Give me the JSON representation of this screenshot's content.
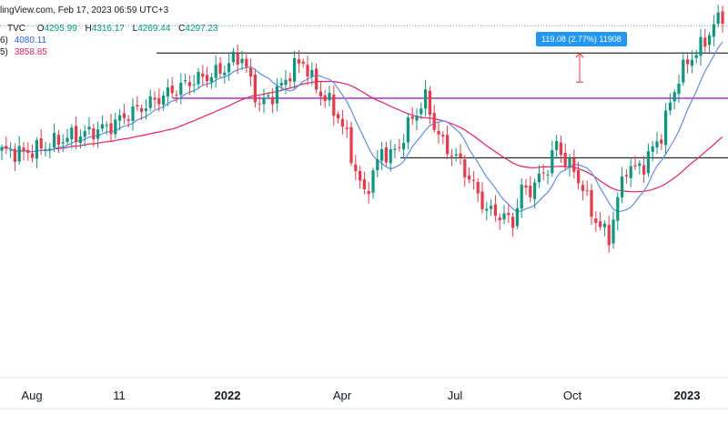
{
  "header": {
    "source": "lingView.com, Feb 17, 2023 06:59 UTC+3",
    "tvc": "TVC",
    "open_label": "O",
    "open": "4295.99",
    "high_label": "H",
    "high": "4316.17",
    "low_label": "L",
    "low": "4269.44",
    "close_label": "C",
    "close": "4297.23"
  },
  "legend": {
    "ma50_prefix": "6)",
    "ma50_value": "4080.11",
    "ma200_prefix": "5)",
    "ma200_value": "3858.85"
  },
  "measure_tag": "119.08 (2.77%) 11908",
  "colors": {
    "up": "#089981",
    "down": "#f23645",
    "ma50": "#5b8def",
    "ma200": "#e91e63",
    "resistance_purple": "#9c27b0",
    "tag": "#2196f3",
    "level_black": "#000000"
  },
  "chart_data": {
    "type": "candlestick",
    "x_tick_labels": [
      "Aug",
      "11",
      "2022",
      "Apr",
      "Jul",
      "Oct",
      "2023"
    ],
    "bold_tick_labels": [
      "2022",
      "2023"
    ],
    "ohlc_last": {
      "open": 4295.99,
      "high": 4316.17,
      "low": 4269.44,
      "close": 4297.23
    },
    "moving_averages": [
      {
        "value": 4080.11
      },
      {
        "value": 3858.85
      }
    ],
    "approx_close_path": [
      [
        0,
        4390
      ],
      [
        5,
        4380
      ],
      [
        10,
        4410
      ],
      [
        15,
        4450
      ],
      [
        20,
        4470
      ],
      [
        25,
        4500
      ],
      [
        28,
        4540
      ],
      [
        32,
        4580
      ],
      [
        36,
        4620
      ],
      [
        40,
        4660
      ],
      [
        44,
        4700
      ],
      [
        48,
        4720
      ],
      [
        51,
        4750
      ],
      [
        53,
        4790
      ],
      [
        55,
        4800
      ],
      [
        57,
        4690
      ],
      [
        59,
        4590
      ],
      [
        61,
        4620
      ],
      [
        63,
        4650
      ],
      [
        65,
        4700
      ],
      [
        67,
        4760
      ],
      [
        69,
        4780
      ],
      [
        71,
        4700
      ],
      [
        73,
        4640
      ],
      [
        75,
        4600
      ],
      [
        77,
        4540
      ],
      [
        79,
        4450
      ],
      [
        81,
        4300
      ],
      [
        83,
        4200
      ],
      [
        85,
        4290
      ],
      [
        87,
        4390
      ],
      [
        89,
        4370
      ],
      [
        91,
        4410
      ],
      [
        93,
        4500
      ],
      [
        95,
        4560
      ],
      [
        97,
        4620
      ],
      [
        99,
        4500
      ],
      [
        101,
        4420
      ],
      [
        103,
        4380
      ],
      [
        105,
        4340
      ],
      [
        107,
        4270
      ],
      [
        109,
        4200
      ],
      [
        111,
        4130
      ],
      [
        113,
        4120
      ],
      [
        115,
        4100
      ],
      [
        117,
        4080
      ],
      [
        119,
        4220
      ],
      [
        121,
        4220
      ],
      [
        123,
        4270
      ],
      [
        125,
        4320
      ],
      [
        127,
        4420
      ],
      [
        129,
        4350
      ],
      [
        131,
        4300
      ],
      [
        133,
        4230
      ],
      [
        135,
        4120
      ],
      [
        137,
        4060
      ],
      [
        139,
        4010
      ],
      [
        141,
        4180
      ],
      [
        143,
        4320
      ],
      [
        145,
        4310
      ],
      [
        147,
        4330
      ],
      [
        149,
        4400
      ],
      [
        151,
        4460
      ],
      [
        153,
        4600
      ],
      [
        155,
        4710
      ],
      [
        157,
        4780
      ],
      [
        159,
        4820
      ],
      [
        161,
        4870
      ],
      [
        163,
        4940
      ],
      [
        165,
        4980
      ]
    ],
    "levels": [
      4817,
      4620,
      4360
    ],
    "measure": {
      "change": 119.08,
      "percent": 2.77,
      "extra": 11908
    }
  }
}
